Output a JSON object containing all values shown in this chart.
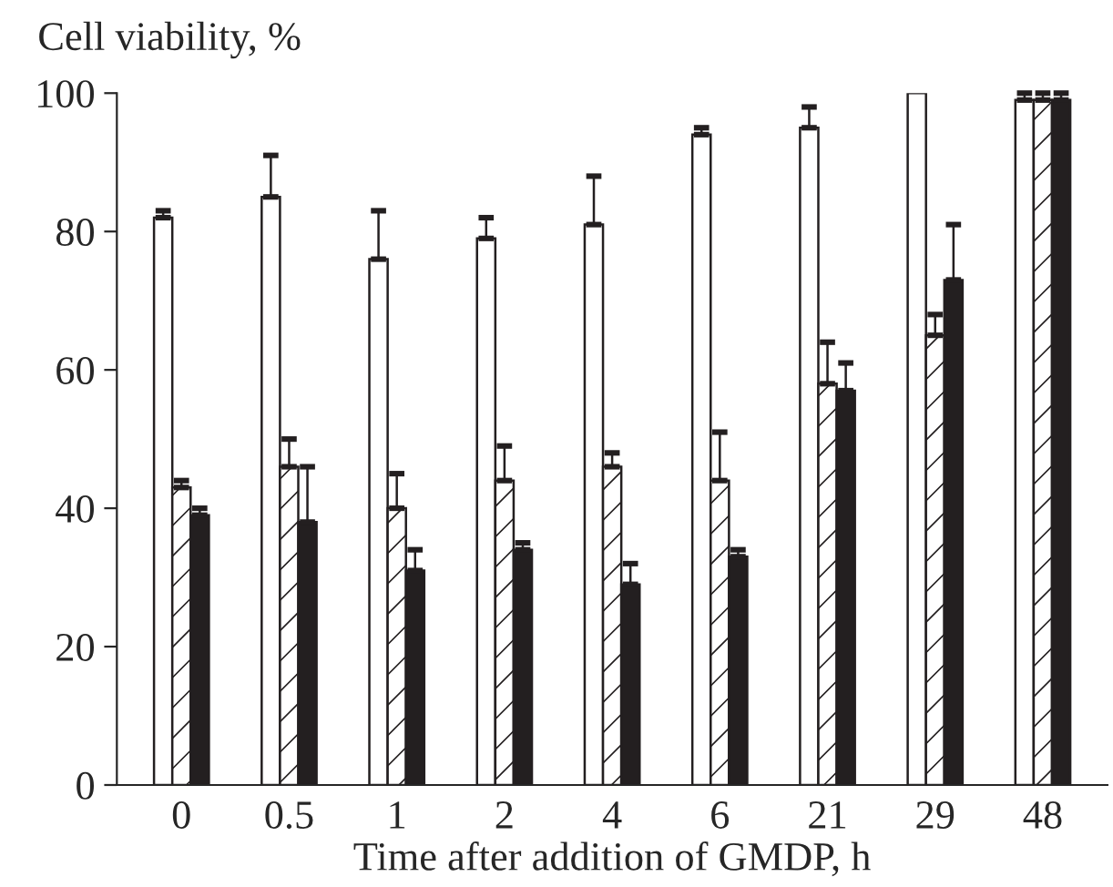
{
  "chart_data": {
    "type": "bar",
    "ylabel": "Cell viability, %",
    "xlabel": "Time after addition of GMDP, h",
    "categories": [
      "0",
      "0.5",
      "1",
      "2",
      "4",
      "6",
      "21",
      "29",
      "48"
    ],
    "series": [
      {
        "color": "#ffffff",
        "values": [
          82,
          85,
          76,
          79,
          81,
          94,
          95,
          100,
          99
        ],
        "errors": [
          [
            82,
            83
          ],
          [
            85,
            91
          ],
          [
            76,
            83
          ],
          [
            79,
            82
          ],
          [
            81,
            88
          ],
          [
            94,
            95
          ],
          [
            95,
            98
          ],
          null,
          [
            99,
            100
          ]
        ]
      },
      {
        "color": "#ffffff",
        "values": [
          43,
          46,
          40,
          44,
          46,
          44,
          58,
          65,
          99
        ],
        "errors": [
          [
            43,
            44
          ],
          [
            46,
            50
          ],
          [
            40,
            45
          ],
          [
            44,
            49
          ],
          [
            46,
            48
          ],
          [
            44,
            51
          ],
          [
            58,
            64
          ],
          [
            65,
            68
          ],
          [
            99,
            100
          ]
        ]
      },
      {
        "color": "#231f20",
        "values": [
          39,
          38,
          31,
          34,
          29,
          33,
          57,
          73,
          99
        ],
        "errors": [
          [
            39,
            40
          ],
          [
            38,
            46
          ],
          [
            31,
            34
          ],
          [
            34,
            35
          ],
          [
            29,
            32
          ],
          [
            33,
            34
          ],
          [
            57,
            61
          ],
          [
            73,
            81
          ],
          [
            99,
            100
          ]
        ]
      }
    ],
    "ylim": [
      0,
      100
    ],
    "yticks": [
      0,
      20,
      40,
      60,
      80,
      100
    ],
    "grid": false,
    "legend": false
  }
}
